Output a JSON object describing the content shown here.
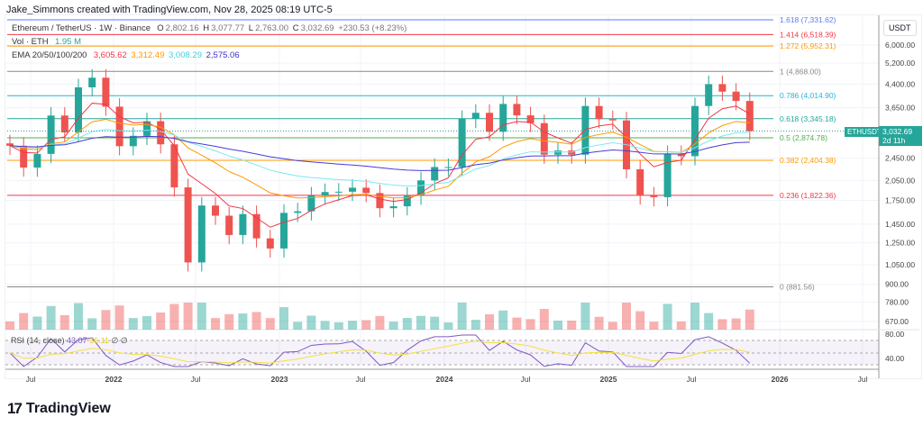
{
  "credit": "Jake_Simmons created with TradingView.com, Nov 28, 2025 08:19 UTC-5",
  "legend": {
    "symbol": "Ethereum / TetherUS · 1W · Binance",
    "o_label": "O",
    "o": "2,802.16",
    "h_label": "H",
    "h": "3,077.77",
    "l_label": "L",
    "l": "2,763.00",
    "c_label": "C",
    "c": "3,032.69",
    "change": "+230.53 (+8.23%)",
    "vol_label": "Vol · ETH",
    "vol": "1.95 M",
    "ema_label": "EMA 20/50/100/200",
    "ema20": "3,605.62",
    "ema50": "3,312.49",
    "ema100": "3,008.29",
    "ema200": "2,575.06"
  },
  "rsi": {
    "label": "RSI (14, close)",
    "value": "43.07",
    "ma": "56.11",
    "extra1": "∅",
    "extra2": "∅"
  },
  "currency": "USDT",
  "ticker": "ETHUSDT",
  "last_price": "3,032.69",
  "countdown": "2d 11h",
  "colors": {
    "up": "#26a69a",
    "down": "#ef5350",
    "ema20": "#f23645",
    "ema50": "#ff9800",
    "ema100": "#7de8f0",
    "ema200": "#4a3bd6",
    "rsi": "#7e57c2",
    "rsi_ma": "#f5e13d"
  },
  "brand": "TradingView",
  "chart_data": {
    "type": "candlestick",
    "scale": "log",
    "ylim": [
      640,
      8000
    ],
    "y_ticks": [
      "6,000.00",
      "5,200.00",
      "4,400.00",
      "3,650.00",
      "2,450.00",
      "2,050.00",
      "1,750.00",
      "1,450.00",
      "1,250.00",
      "1,050.00",
      "900.00",
      "780.00",
      "670.00"
    ],
    "y_tick_values": [
      6000,
      5200,
      4400,
      3650,
      2450,
      2050,
      1750,
      1450,
      1250,
      1050,
      900,
      780,
      670
    ],
    "x_ticks": [
      "Jul",
      "2022",
      "Jul",
      "2023",
      "Jul",
      "2024",
      "Jul",
      "2025",
      "Jul",
      "2026",
      "Jul"
    ],
    "rsi_ticks": [
      "80.00",
      "40.00"
    ],
    "periods": [
      "2021-05",
      "2021-06",
      "2021-07",
      "2021-08",
      "2021-09",
      "2021-10",
      "2021-11",
      "2021-12",
      "2022-01",
      "2022-02",
      "2022-03",
      "2022-04",
      "2022-05",
      "2022-06",
      "2022-07",
      "2022-08",
      "2022-09",
      "2022-10",
      "2022-11",
      "2022-12",
      "2023-01",
      "2023-02",
      "2023-03",
      "2023-04",
      "2023-05",
      "2023-06",
      "2023-07",
      "2023-08",
      "2023-09",
      "2023-10",
      "2023-11",
      "2023-12",
      "2024-01",
      "2024-02",
      "2024-03",
      "2024-04",
      "2024-05",
      "2024-06",
      "2024-07",
      "2024-08",
      "2024-09",
      "2024-10",
      "2024-11",
      "2024-12",
      "2025-01",
      "2025-02",
      "2025-03",
      "2025-04",
      "2025-05",
      "2025-06",
      "2025-07",
      "2025-08",
      "2025-09",
      "2025-10",
      "2025-11"
    ],
    "close": [
      2700,
      2270,
      2530,
      3430,
      3000,
      4290,
      4630,
      3680,
      2690,
      2920,
      3280,
      2730,
      1940,
      1070,
      1680,
      1550,
      1330,
      1570,
      1295,
      1195,
      1585,
      1605,
      1820,
      1870,
      1875,
      1935,
      1855,
      1645,
      1670,
      1815,
      2050,
      2280,
      2280,
      3340,
      3505,
      3015,
      3760,
      3435,
      3230,
      2515,
      2600,
      2515,
      3700,
      3335,
      3300,
      2240,
      1820,
      1795,
      2530,
      2485,
      3700,
      4400,
      4145,
      3850,
      3033
    ],
    "first_open": 2750,
    "fib_levels": [
      {
        "level": "1.618",
        "price": "7,331.62",
        "value": 7331.62,
        "color": "#5b7cf5"
      },
      {
        "level": "1.414",
        "price": "6,518.39",
        "value": 6518.39,
        "color": "#f23645"
      },
      {
        "level": "1.272",
        "price": "5,952.31",
        "value": 5952.31,
        "color": "#ff9800"
      },
      {
        "level": "1",
        "price": "4,868.00",
        "value": 4868,
        "color": "#888888"
      },
      {
        "level": "0.786",
        "price": "4,014.90",
        "value": 4014.9,
        "color": "#1fb6d6"
      },
      {
        "level": "0.618",
        "price": "3,345.18",
        "value": 3345.18,
        "color": "#26a69a"
      },
      {
        "level": "0.5",
        "price": "2,874.78",
        "value": 2874.78,
        "color": "#4caf50"
      },
      {
        "level": "0.382",
        "price": "2,404.38",
        "value": 2404.38,
        "color": "#ff9800"
      },
      {
        "level": "0.236",
        "price": "1,822.36",
        "value": 1822.36,
        "color": "#f23645"
      },
      {
        "level": "0",
        "price": "881.56",
        "value": 881.56,
        "color": "#888888"
      }
    ]
  }
}
